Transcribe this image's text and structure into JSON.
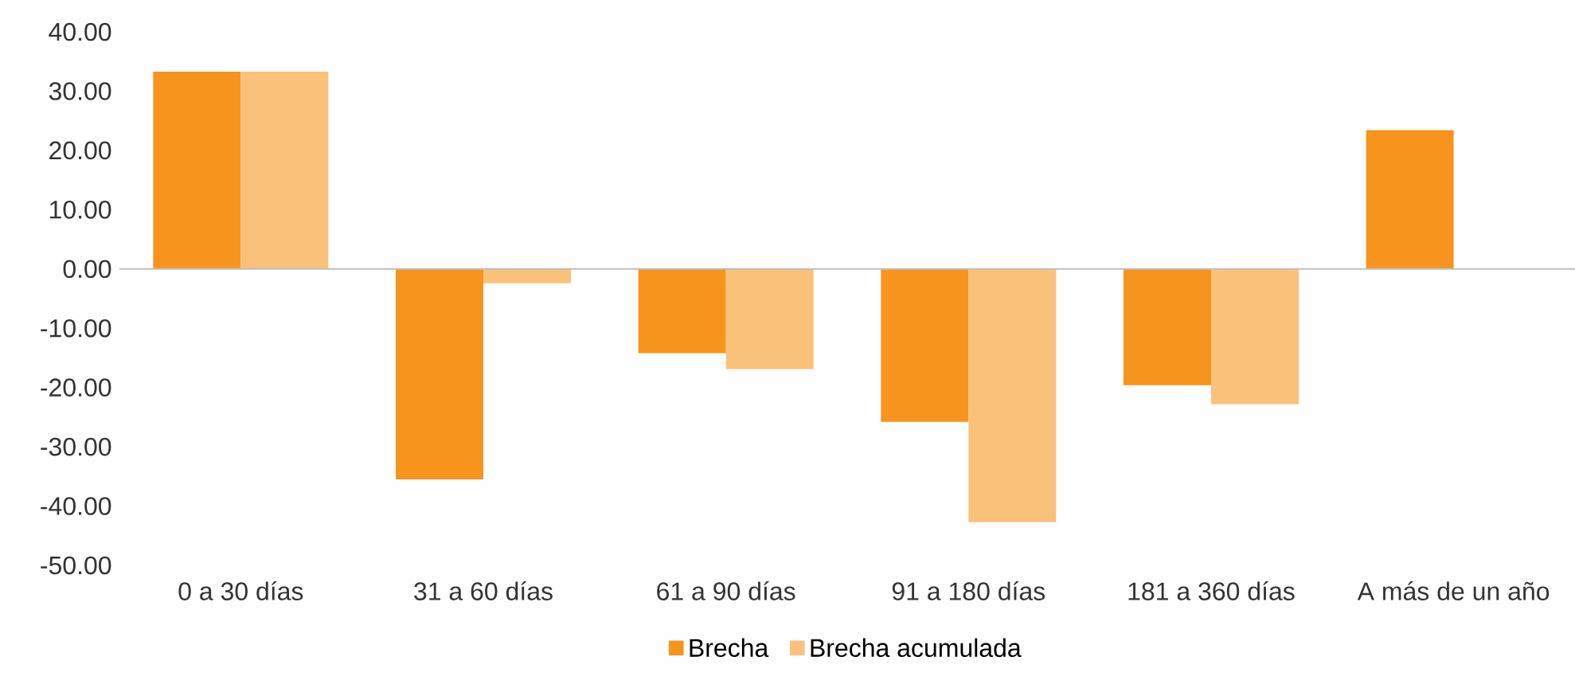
{
  "chart_data": {
    "type": "bar",
    "categories": [
      "0 a 30 días",
      "31 a 60 días",
      "61 a 90 días",
      "91 a 180 días",
      "181 a 360 días",
      "A más de un año"
    ],
    "series": [
      {
        "name": "Brecha",
        "color": "#f7941d",
        "values": [
          33.3,
          -35.5,
          -14.2,
          -25.8,
          -19.6,
          23.4
        ]
      },
      {
        "name": "Brecha acumulada",
        "color": "#fac17a",
        "values": [
          33.3,
          -2.4,
          -16.9,
          -42.7,
          -22.8,
          null
        ]
      }
    ],
    "ylim": [
      -50,
      40
    ],
    "yticks": [
      {
        "value": -50,
        "label": "-50.00"
      },
      {
        "value": -40,
        "label": "-40.00"
      },
      {
        "value": -30,
        "label": "-30.00"
      },
      {
        "value": -20,
        "label": "-20.00"
      },
      {
        "value": -10,
        "label": "-10.00"
      },
      {
        "value": 0,
        "label": "0.00"
      },
      {
        "value": 10,
        "label": "10.00"
      },
      {
        "value": 20,
        "label": "20.00"
      },
      {
        "value": 30,
        "label": "30.00"
      },
      {
        "value": 40,
        "label": "40.00"
      }
    ],
    "legend": "bottom"
  }
}
